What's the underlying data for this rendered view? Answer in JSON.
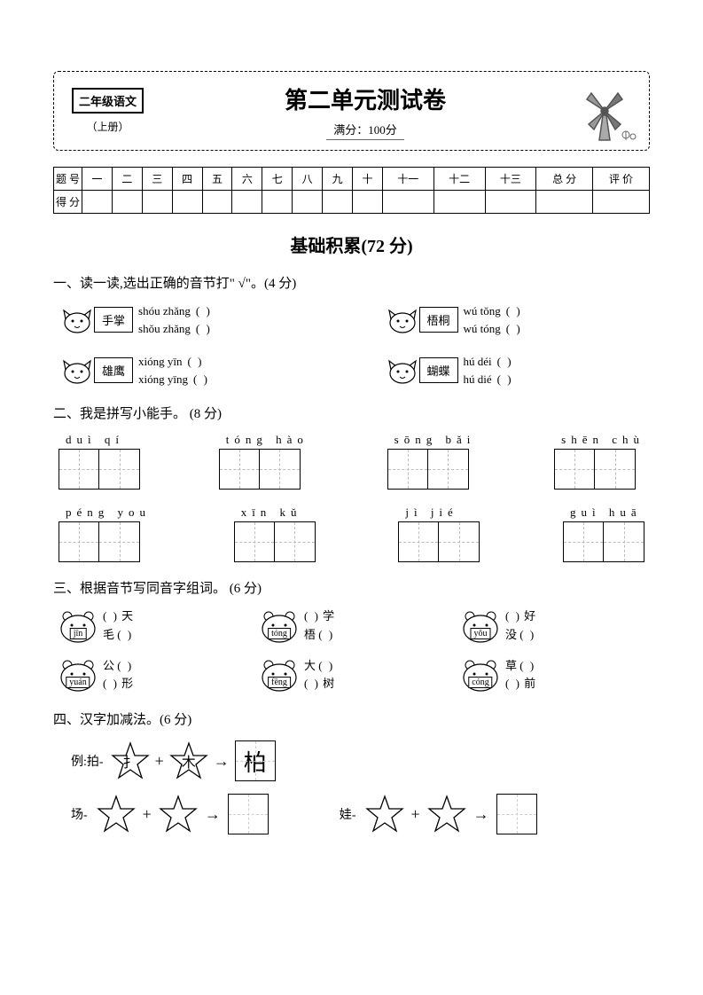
{
  "header": {
    "subject": "二年级语文",
    "volume": "（上册）",
    "title": "第二单元测试卷",
    "full_score": "满分：100分"
  },
  "score_table": {
    "row1_label": "题 号",
    "row2_label": "得 分",
    "cols": [
      "一",
      "二",
      "三",
      "四",
      "五",
      "六",
      "七",
      "八",
      "九",
      "十",
      "十一",
      "十二",
      "十三",
      "总 分",
      "评 价"
    ]
  },
  "section_title": "基础积累(72 分)",
  "q1": {
    "heading": "一、读一读,选出正确的音节打\" √\"。(4 分)",
    "items": [
      {
        "word": "手掌",
        "p1": "shóu zhǎng",
        "p2": "shǒu zhǎng"
      },
      {
        "word": "梧桐",
        "p1": "wú tǒng",
        "p2": "wú tóng"
      },
      {
        "word": "雄鹰",
        "p1": "xióng yīn",
        "p2": "xióng yīng"
      },
      {
        "word": "蝴蝶",
        "p1": "hú déi",
        "p2": "hú dié"
      }
    ]
  },
  "q2": {
    "heading": "二、我是拼写小能手。 (8 分)",
    "row1": [
      {
        "pinyin": "duì  qí"
      },
      {
        "pinyin": "tóng  hào"
      },
      {
        "pinyin": "sōng  bǎi"
      },
      {
        "pinyin": "shēn  chù"
      }
    ],
    "row2": [
      {
        "pinyin": "péng  you"
      },
      {
        "pinyin": "xīn  kǔ"
      },
      {
        "pinyin": "jì  jié"
      },
      {
        "pinyin": "guì  huā"
      }
    ]
  },
  "q3": {
    "heading": "三、根据音节写同音字组词。 (6 分)",
    "items": [
      {
        "py": "jīn",
        "a": "天",
        "b": "毛",
        "a_blank_before": true,
        "b_blank_after": true
      },
      {
        "py": "tóng",
        "a": "学",
        "b": "梧",
        "a_blank_before": true,
        "b_blank_after": true
      },
      {
        "py": "yǒu",
        "a": "好",
        "b": "没",
        "a_blank_before": true,
        "b_blank_after": true
      },
      {
        "py": "yuán",
        "a": "公",
        "b": "形",
        "a_blank_after": true,
        "b_blank_before": true
      },
      {
        "py": "fēng",
        "a": "大",
        "b": "树",
        "a_blank_after": true,
        "b_blank_before": true
      },
      {
        "py": "cóng",
        "a": "草",
        "b": "前",
        "a_blank_after": true,
        "b_blank_before": true
      }
    ]
  },
  "q4": {
    "heading": "四、汉字加减法。(6 分)",
    "example_label": "例:拍-",
    "example": {
      "s1": "扌",
      "s2": "木",
      "result": "柏"
    },
    "items": [
      {
        "label": "场-"
      },
      {
        "label": "娃-"
      }
    ]
  },
  "colors": {
    "text": "#000000",
    "bg": "#ffffff",
    "dash": "#bbbbbb"
  }
}
